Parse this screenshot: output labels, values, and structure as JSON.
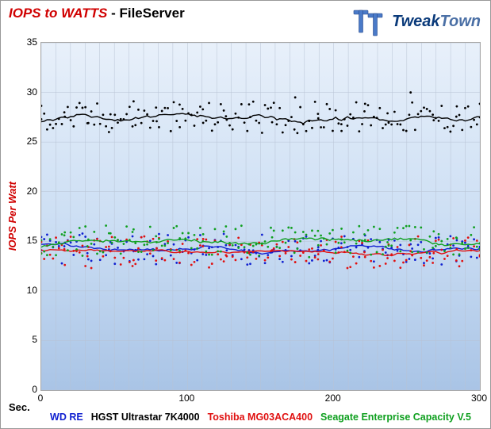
{
  "title_left": "IOPS to WATTS",
  "title_right": " - FileServer",
  "brand": {
    "main": "Tweak",
    "town": "Town"
  },
  "chart": {
    "type": "scatter",
    "xlabel": "Sec.",
    "ylabel": "IOPS Per Watt",
    "xlim": [
      0,
      300
    ],
    "ylim": [
      0,
      35
    ],
    "xtick_step": 100,
    "ytick_step": 5,
    "xticks": [
      0,
      100,
      200,
      300
    ],
    "yticks": [
      0,
      5,
      10,
      15,
      20,
      25,
      30,
      35
    ],
    "grid_color": "#b8c3d4",
    "grid_minor_step_x": 10,
    "background_gradient": [
      "#e8f0fa",
      "#cddff4",
      "#a9c4e6"
    ],
    "marker_size": 1.4,
    "line_width_trend": 1.4,
    "n_points_per_series": 150,
    "jitter": 1.6,
    "series": [
      {
        "name": "WD RE",
        "color": "#1020d0",
        "mean": 14.2,
        "trend_amp": 0.9,
        "points_y": [
          14.1,
          14.5,
          13.8,
          14.9,
          14.0,
          14.3,
          15.2,
          13.7,
          14.6,
          14.1,
          13.9,
          15.0,
          14.4,
          14.8,
          14.0,
          13.6,
          14.7,
          14.2,
          15.1,
          14.3
        ]
      },
      {
        "name": "HGST Ultrastar 7K4000",
        "color": "#000000",
        "mean": 27.5,
        "trend_amp": 1.2,
        "points_y": [
          27.3,
          28.0,
          26.9,
          27.8,
          29.1,
          27.1,
          26.5,
          28.3,
          27.6,
          28.8,
          27.0,
          29.5,
          27.4,
          26.8,
          28.1,
          27.9,
          30.0,
          27.2,
          28.6,
          27.5
        ]
      },
      {
        "name": "Toshiba MG03ACA400",
        "color": "#e01010",
        "mean": 13.9,
        "trend_amp": 0.7,
        "points_y": [
          13.8,
          14.2,
          13.5,
          14.0,
          13.1,
          14.3,
          13.9,
          14.5,
          13.6,
          13.8,
          14.1,
          12.9,
          13.7,
          14.4,
          13.9,
          13.3,
          14.0,
          13.8,
          14.2,
          13.6
        ]
      },
      {
        "name": "Seagate Enterprise Capacity V.5",
        "color": "#10a020",
        "mean": 15.0,
        "trend_amp": 1.0,
        "points_y": [
          15.1,
          15.6,
          14.5,
          15.8,
          16.2,
          14.9,
          15.3,
          15.0,
          16.5,
          14.7,
          15.4,
          15.9,
          14.6,
          15.2,
          15.7,
          14.9,
          15.1,
          16.0,
          15.3,
          14.8
        ]
      }
    ]
  },
  "legend_items": [
    {
      "label": "WD RE",
      "color": "#1020d0"
    },
    {
      "label": "HGST Ultrastar 7K4000",
      "color": "#000000"
    },
    {
      "label": "Toshiba MG03ACA400",
      "color": "#e01010"
    },
    {
      "label": "Seagate Enterprise Capacity V.5",
      "color": "#10a020"
    }
  ]
}
